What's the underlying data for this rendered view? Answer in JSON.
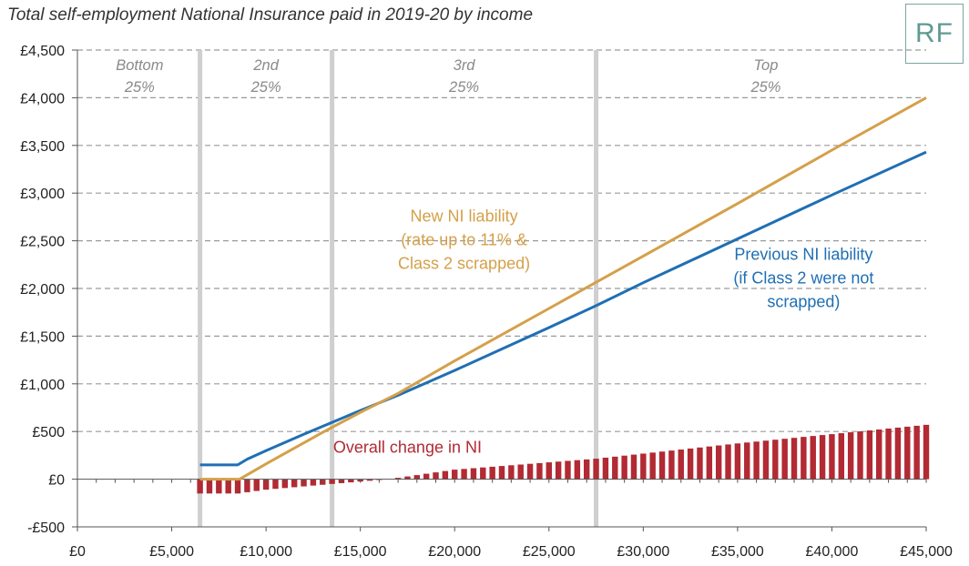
{
  "title": "Total self-employment National Insurance paid in 2019-20 by income",
  "logo_text": "RF",
  "chart_data": {
    "type": "line",
    "title": "Total self-employment National Insurance paid in 2019-20 by income",
    "xlabel": "",
    "ylabel": "",
    "xlim": [
      0,
      45000
    ],
    "ylim": [
      -500,
      4500
    ],
    "grid": "horizontal-dashed",
    "x_ticks": [
      0,
      5000,
      10000,
      15000,
      20000,
      25000,
      30000,
      35000,
      40000,
      45000
    ],
    "x_tick_labels": [
      "£0",
      "£5,000",
      "£10,000",
      "£15,000",
      "£20,000",
      "£25,000",
      "£30,000",
      "£35,000",
      "£40,000",
      "£45,000"
    ],
    "y_ticks": [
      -500,
      0,
      500,
      1000,
      1500,
      2000,
      2500,
      3000,
      3500,
      4000,
      4500
    ],
    "y_tick_labels": [
      "-£500",
      "£0",
      "£500",
      "£1,000",
      "£1,500",
      "£2,000",
      "£2,500",
      "£3,000",
      "£3,500",
      "£4,000",
      "£4,500"
    ],
    "quartile_boundaries": [
      6500,
      13500,
      27500
    ],
    "quartile_labels": [
      {
        "line1": "Bottom",
        "line2": "25%",
        "x": 3300
      },
      {
        "line1": "2nd",
        "line2": "25%",
        "x": 10000
      },
      {
        "line1": "3rd",
        "line2": "25%",
        "x": 20500
      },
      {
        "line1": "Top",
        "line2": "25%",
        "x": 36500
      }
    ],
    "series": [
      {
        "name": "Previous NI liability (if Class 2 were not scrapped)",
        "type": "line",
        "color": "#1f6fb4",
        "points": [
          [
            6500,
            150
          ],
          [
            8500,
            150
          ],
          [
            9000,
            210
          ],
          [
            10000,
            300
          ],
          [
            12000,
            470
          ],
          [
            15000,
            720
          ],
          [
            17000,
            880
          ],
          [
            20000,
            1140
          ],
          [
            25000,
            1590
          ],
          [
            27500,
            1820
          ],
          [
            30000,
            2060
          ],
          [
            35000,
            2520
          ],
          [
            40000,
            2980
          ],
          [
            45000,
            3430
          ]
        ]
      },
      {
        "name": "New NI liability (rate up to 11% & Class 2 scrapped)",
        "type": "line",
        "color": "#d4a04a",
        "points": [
          [
            6500,
            0
          ],
          [
            8600,
            0
          ],
          [
            10000,
            160
          ],
          [
            13000,
            490
          ],
          [
            15000,
            700
          ],
          [
            17000,
            900
          ],
          [
            20000,
            1240
          ],
          [
            25000,
            1790
          ],
          [
            30000,
            2340
          ],
          [
            35000,
            2890
          ],
          [
            40000,
            3450
          ],
          [
            45000,
            4000
          ]
        ]
      },
      {
        "name": "Overall change in NI",
        "type": "bar",
        "color": "#b22a33",
        "x_start": 6500,
        "x_end": 45000,
        "step": 500,
        "anchors": [
          [
            6500,
            -150
          ],
          [
            8500,
            -150
          ],
          [
            10000,
            -110
          ],
          [
            13500,
            -50
          ],
          [
            16500,
            0
          ],
          [
            20000,
            100
          ],
          [
            27500,
            215
          ],
          [
            35000,
            375
          ],
          [
            45000,
            570
          ]
        ]
      }
    ],
    "annotations": [
      {
        "lines": [
          "New NI liability",
          "(rate up to 11% &",
          "Class 2 scrapped)"
        ],
        "color": "#d4a04a",
        "x": 20500,
        "y": 2700
      },
      {
        "lines": [
          "Previous NI liability",
          "(if Class 2 were not",
          "scrapped)"
        ],
        "color": "#1f6fb4",
        "x": 38500,
        "y": 2300
      },
      {
        "lines": [
          "Overall change in NI"
        ],
        "color": "#b22a33",
        "x": 17500,
        "y": 280
      }
    ]
  }
}
